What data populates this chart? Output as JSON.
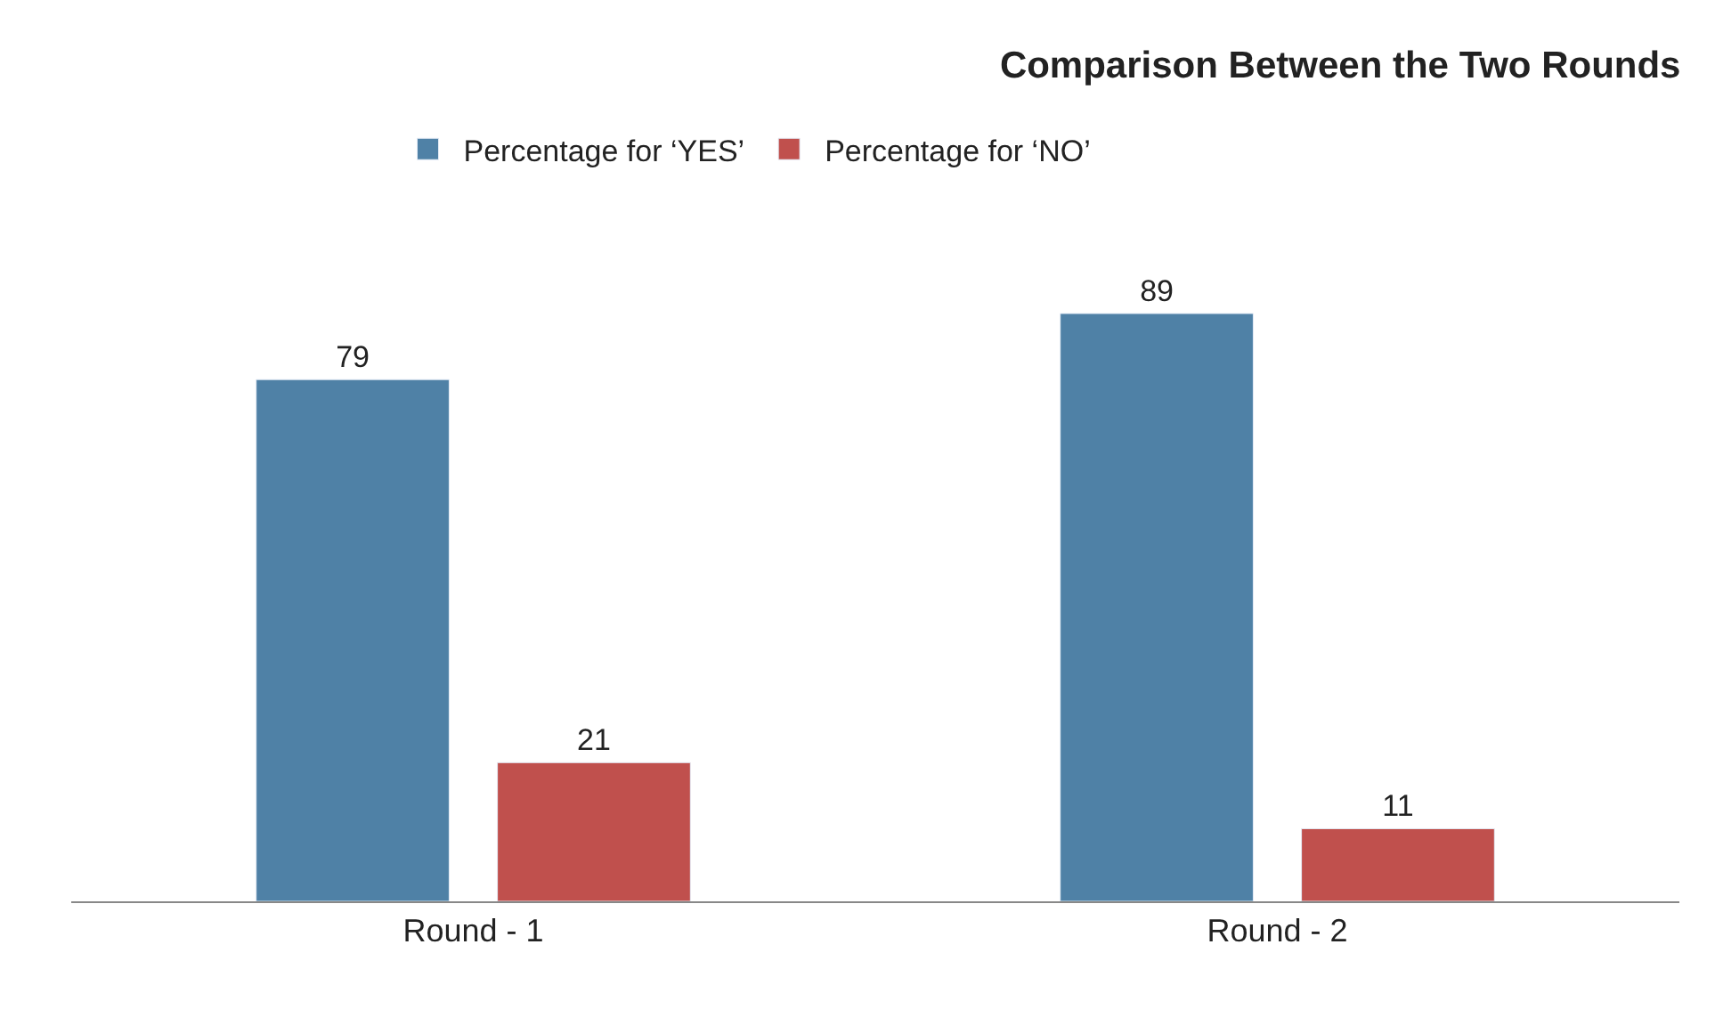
{
  "chart_data": {
    "type": "bar",
    "title": "Comparison Between the Two Rounds",
    "categories": [
      "Round - 1",
      "Round - 2"
    ],
    "series": [
      {
        "name": "Percentage for ‘YES’",
        "color": "#4f81a6",
        "values": [
          79,
          89
        ]
      },
      {
        "name": "Percentage for ‘NO’",
        "color": "#c0504d",
        "values": [
          21,
          11
        ]
      }
    ],
    "data_labels": true,
    "legend": "top"
  }
}
